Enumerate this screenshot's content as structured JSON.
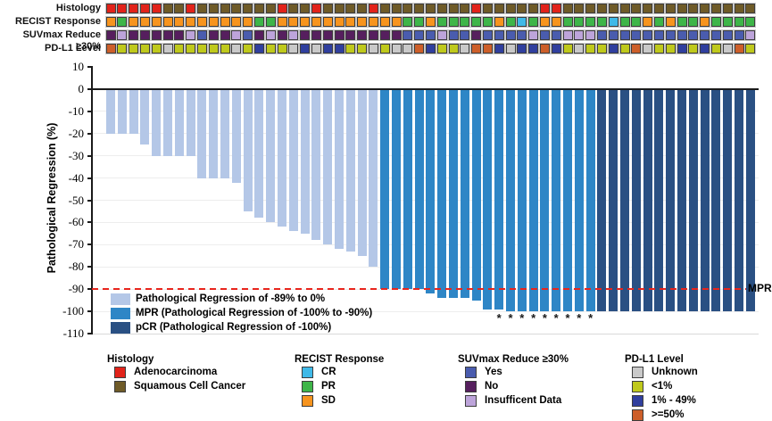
{
  "tracks": {
    "rows": [
      {
        "id": "histology",
        "label": "Histology",
        "colors": {
          "ADC": "#e2231a",
          "SCC": "#6f5b28"
        },
        "values": [
          "ADC",
          "ADC",
          "ADC",
          "ADC",
          "ADC",
          "SCC",
          "SCC",
          "ADC",
          "SCC",
          "SCC",
          "SCC",
          "SCC",
          "SCC",
          "SCC",
          "SCC",
          "ADC",
          "SCC",
          "SCC",
          "ADC",
          "SCC",
          "SCC",
          "SCC",
          "SCC",
          "ADC",
          "SCC",
          "SCC",
          "SCC",
          "SCC",
          "SCC",
          "SCC",
          "SCC",
          "SCC",
          "ADC",
          "SCC",
          "SCC",
          "SCC",
          "SCC",
          "SCC",
          "ADC",
          "ADC",
          "SCC",
          "SCC",
          "SCC",
          "SCC",
          "SCC",
          "SCC",
          "SCC",
          "SCC",
          "SCC",
          "SCC",
          "SCC",
          "SCC",
          "SCC",
          "SCC",
          "SCC",
          "SCC",
          "SCC"
        ]
      },
      {
        "id": "recist-response",
        "label": "RECIST Response",
        "colors": {
          "CR": "#3fb9e8",
          "PR": "#3eb549",
          "SD": "#f7941e"
        },
        "values": [
          "SD",
          "PR",
          "SD",
          "SD",
          "SD",
          "SD",
          "SD",
          "SD",
          "SD",
          "SD",
          "SD",
          "SD",
          "SD",
          "PR",
          "PR",
          "SD",
          "SD",
          "SD",
          "SD",
          "SD",
          "SD",
          "SD",
          "SD",
          "SD",
          "SD",
          "SD",
          "PR",
          "PR",
          "SD",
          "PR",
          "PR",
          "PR",
          "PR",
          "PR",
          "SD",
          "PR",
          "CR",
          "PR",
          "SD",
          "SD",
          "PR",
          "PR",
          "PR",
          "PR",
          "CR",
          "PR",
          "PR",
          "SD",
          "PR",
          "SD",
          "PR",
          "PR",
          "SD",
          "PR",
          "PR",
          "PR",
          "PR"
        ]
      },
      {
        "id": "suvmax-reduce",
        "label": "SUVmax Reduce ≥30%",
        "colors": {
          "Yes": "#4a5cae",
          "No": "#561f5e",
          "ID": "#bda4da"
        },
        "values": [
          "No",
          "ID",
          "No",
          "No",
          "No",
          "No",
          "No",
          "ID",
          "Yes",
          "No",
          "No",
          "ID",
          "Yes",
          "No",
          "ID",
          "No",
          "ID",
          "No",
          "No",
          "No",
          "No",
          "No",
          "No",
          "No",
          "No",
          "No",
          "Yes",
          "Yes",
          "Yes",
          "ID",
          "Yes",
          "Yes",
          "No",
          "Yes",
          "Yes",
          "Yes",
          "Yes",
          "ID",
          "Yes",
          "Yes",
          "ID",
          "ID",
          "ID",
          "Yes",
          "Yes",
          "Yes",
          "Yes",
          "Yes",
          "Yes",
          "Yes",
          "Yes",
          "Yes",
          "Yes",
          "Yes",
          "Yes",
          "Yes",
          "ID"
        ]
      },
      {
        "id": "pdl1-level",
        "label": "PD-L1 Level",
        "colors": {
          "UNK": "#c9c9c9",
          "<1": "#bfc91c",
          "1-49": "#303f9e",
          ">=50": "#cd5f2a"
        },
        "values": [
          ">=50",
          "<1",
          "<1",
          "<1",
          "<1",
          "UNK",
          "<1",
          "<1",
          "<1",
          "<1",
          "<1",
          "UNK",
          "<1",
          "1-49",
          "<1",
          "<1",
          "UNK",
          "1-49",
          "UNK",
          "1-49",
          "1-49",
          "<1",
          "<1",
          "UNK",
          "<1",
          "UNK",
          "UNK",
          ">=50",
          "1-49",
          "<1",
          "<1",
          "UNK",
          ">=50",
          ">=50",
          "1-49",
          "UNK",
          "1-49",
          "1-49",
          ">=50",
          "1-49",
          "<1",
          "UNK",
          "<1",
          "<1",
          "1-49",
          "<1",
          ">=50",
          "UNK",
          "<1",
          "<1",
          "1-49",
          "<1",
          "1-49",
          "<1",
          "UNK",
          ">=50",
          "<1"
        ]
      }
    ]
  },
  "chart_data": {
    "type": "bar",
    "title": "",
    "xlabel": "",
    "ylabel": "Pathological Regression (%)",
    "ylim": [
      -110,
      10
    ],
    "yticks": [
      10,
      0,
      -10,
      -20,
      -30,
      -40,
      -50,
      -60,
      -70,
      -80,
      -90,
      -100,
      -110
    ],
    "grid": "horizontal-light",
    "values": [
      -20,
      -20,
      -20,
      -25,
      -30,
      -30,
      -30,
      -30,
      -40,
      -40,
      -40,
      -42,
      -55,
      -58,
      -60,
      -62,
      -64,
      -65,
      -68,
      -70,
      -72,
      -73,
      -75,
      -80,
      -90,
      -90,
      -90,
      -90,
      -92,
      -94,
      -94,
      -94,
      -95,
      -99,
      -99,
      -100,
      -100,
      -100,
      -100,
      -100,
      -100,
      -100,
      -100,
      -100,
      -100,
      -100,
      -100,
      -100,
      -100,
      -100,
      -100,
      -100,
      -100,
      -100,
      -100,
      -100,
      -100
    ],
    "bar_categories": [
      "reg",
      "reg",
      "reg",
      "reg",
      "reg",
      "reg",
      "reg",
      "reg",
      "reg",
      "reg",
      "reg",
      "reg",
      "reg",
      "reg",
      "reg",
      "reg",
      "reg",
      "reg",
      "reg",
      "reg",
      "reg",
      "reg",
      "reg",
      "reg",
      "mpr",
      "mpr",
      "mpr",
      "mpr",
      "mpr",
      "mpr",
      "mpr",
      "mpr",
      "mpr",
      "mpr",
      "mpr",
      "mpr",
      "mpr",
      "mpr",
      "mpr",
      "mpr",
      "mpr",
      "mpr",
      "mpr",
      "pcr",
      "pcr",
      "pcr",
      "pcr",
      "pcr",
      "pcr",
      "pcr",
      "pcr",
      "pcr",
      "pcr",
      "pcr",
      "pcr",
      "pcr",
      "pcr"
    ],
    "category_colors": {
      "reg": "#b4c7e7",
      "mpr": "#2e86c6",
      "pcr": "#2a5083"
    },
    "asterisk_columns": [
      35,
      36,
      37,
      38,
      39,
      40,
      41,
      42,
      43
    ],
    "asterisk_glyph": "*",
    "reference_line": {
      "y": -90,
      "label": "MPR",
      "color": "#e8251d",
      "style": "dashed"
    },
    "legend_position": "bottom-left-inside",
    "bar_legend": [
      {
        "category": "reg",
        "label": "Pathological Regression of -89% to 0%"
      },
      {
        "category": "mpr",
        "label": "MPR (Pathological Regression of -100% to -90%)"
      },
      {
        "category": "pcr",
        "label": "pCR (Pathological Regression of -100%)"
      }
    ]
  },
  "legend_panels": [
    {
      "id": "histology",
      "title": "Histology",
      "items": [
        {
          "color": "#e2231a",
          "label": "Adenocarcinoma"
        },
        {
          "color": "#6f5b28",
          "label": "Squamous Cell Cancer"
        }
      ]
    },
    {
      "id": "recist-response",
      "title": "RECIST Response",
      "items": [
        {
          "color": "#3fb9e8",
          "label": "CR"
        },
        {
          "color": "#3eb549",
          "label": "PR"
        },
        {
          "color": "#f7941e",
          "label": "SD"
        }
      ]
    },
    {
      "id": "suvmax-reduce",
      "title": "SUVmax Reduce ≥30%",
      "items": [
        {
          "color": "#4a5cae",
          "label": "Yes"
        },
        {
          "color": "#561f5e",
          "label": "No"
        },
        {
          "color": "#bda4da",
          "label": "Insufficent Data"
        }
      ]
    },
    {
      "id": "pdl1-level",
      "title": "PD-L1 Level",
      "items": [
        {
          "color": "#c9c9c9",
          "label": "Unknown"
        },
        {
          "color": "#bfc91c",
          "label": "<1%"
        },
        {
          "color": "#303f9e",
          "label": "1% - 49%"
        },
        {
          "color": "#cd5f2a",
          "label": ">=50%"
        }
      ]
    }
  ]
}
